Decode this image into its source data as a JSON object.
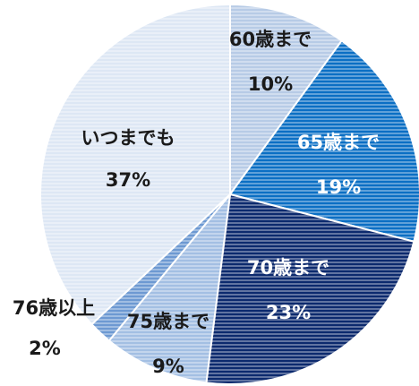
{
  "chart_data": {
    "type": "pie",
    "categories": [
      "60歳まで",
      "65歳まで",
      "70歳まで",
      "75歳まで",
      "76歳以上",
      "いつまでも"
    ],
    "values": [
      10,
      19,
      23,
      9,
      2,
      37
    ],
    "value_labels": [
      "10%",
      "19%",
      "23%",
      "9%",
      "2%",
      "37%"
    ],
    "colors": [
      "#b7cbe6",
      "#0b6fc4",
      "#0c2a6e",
      "#a3bfe3",
      "#6d99d2",
      "#dde7f4"
    ]
  }
}
